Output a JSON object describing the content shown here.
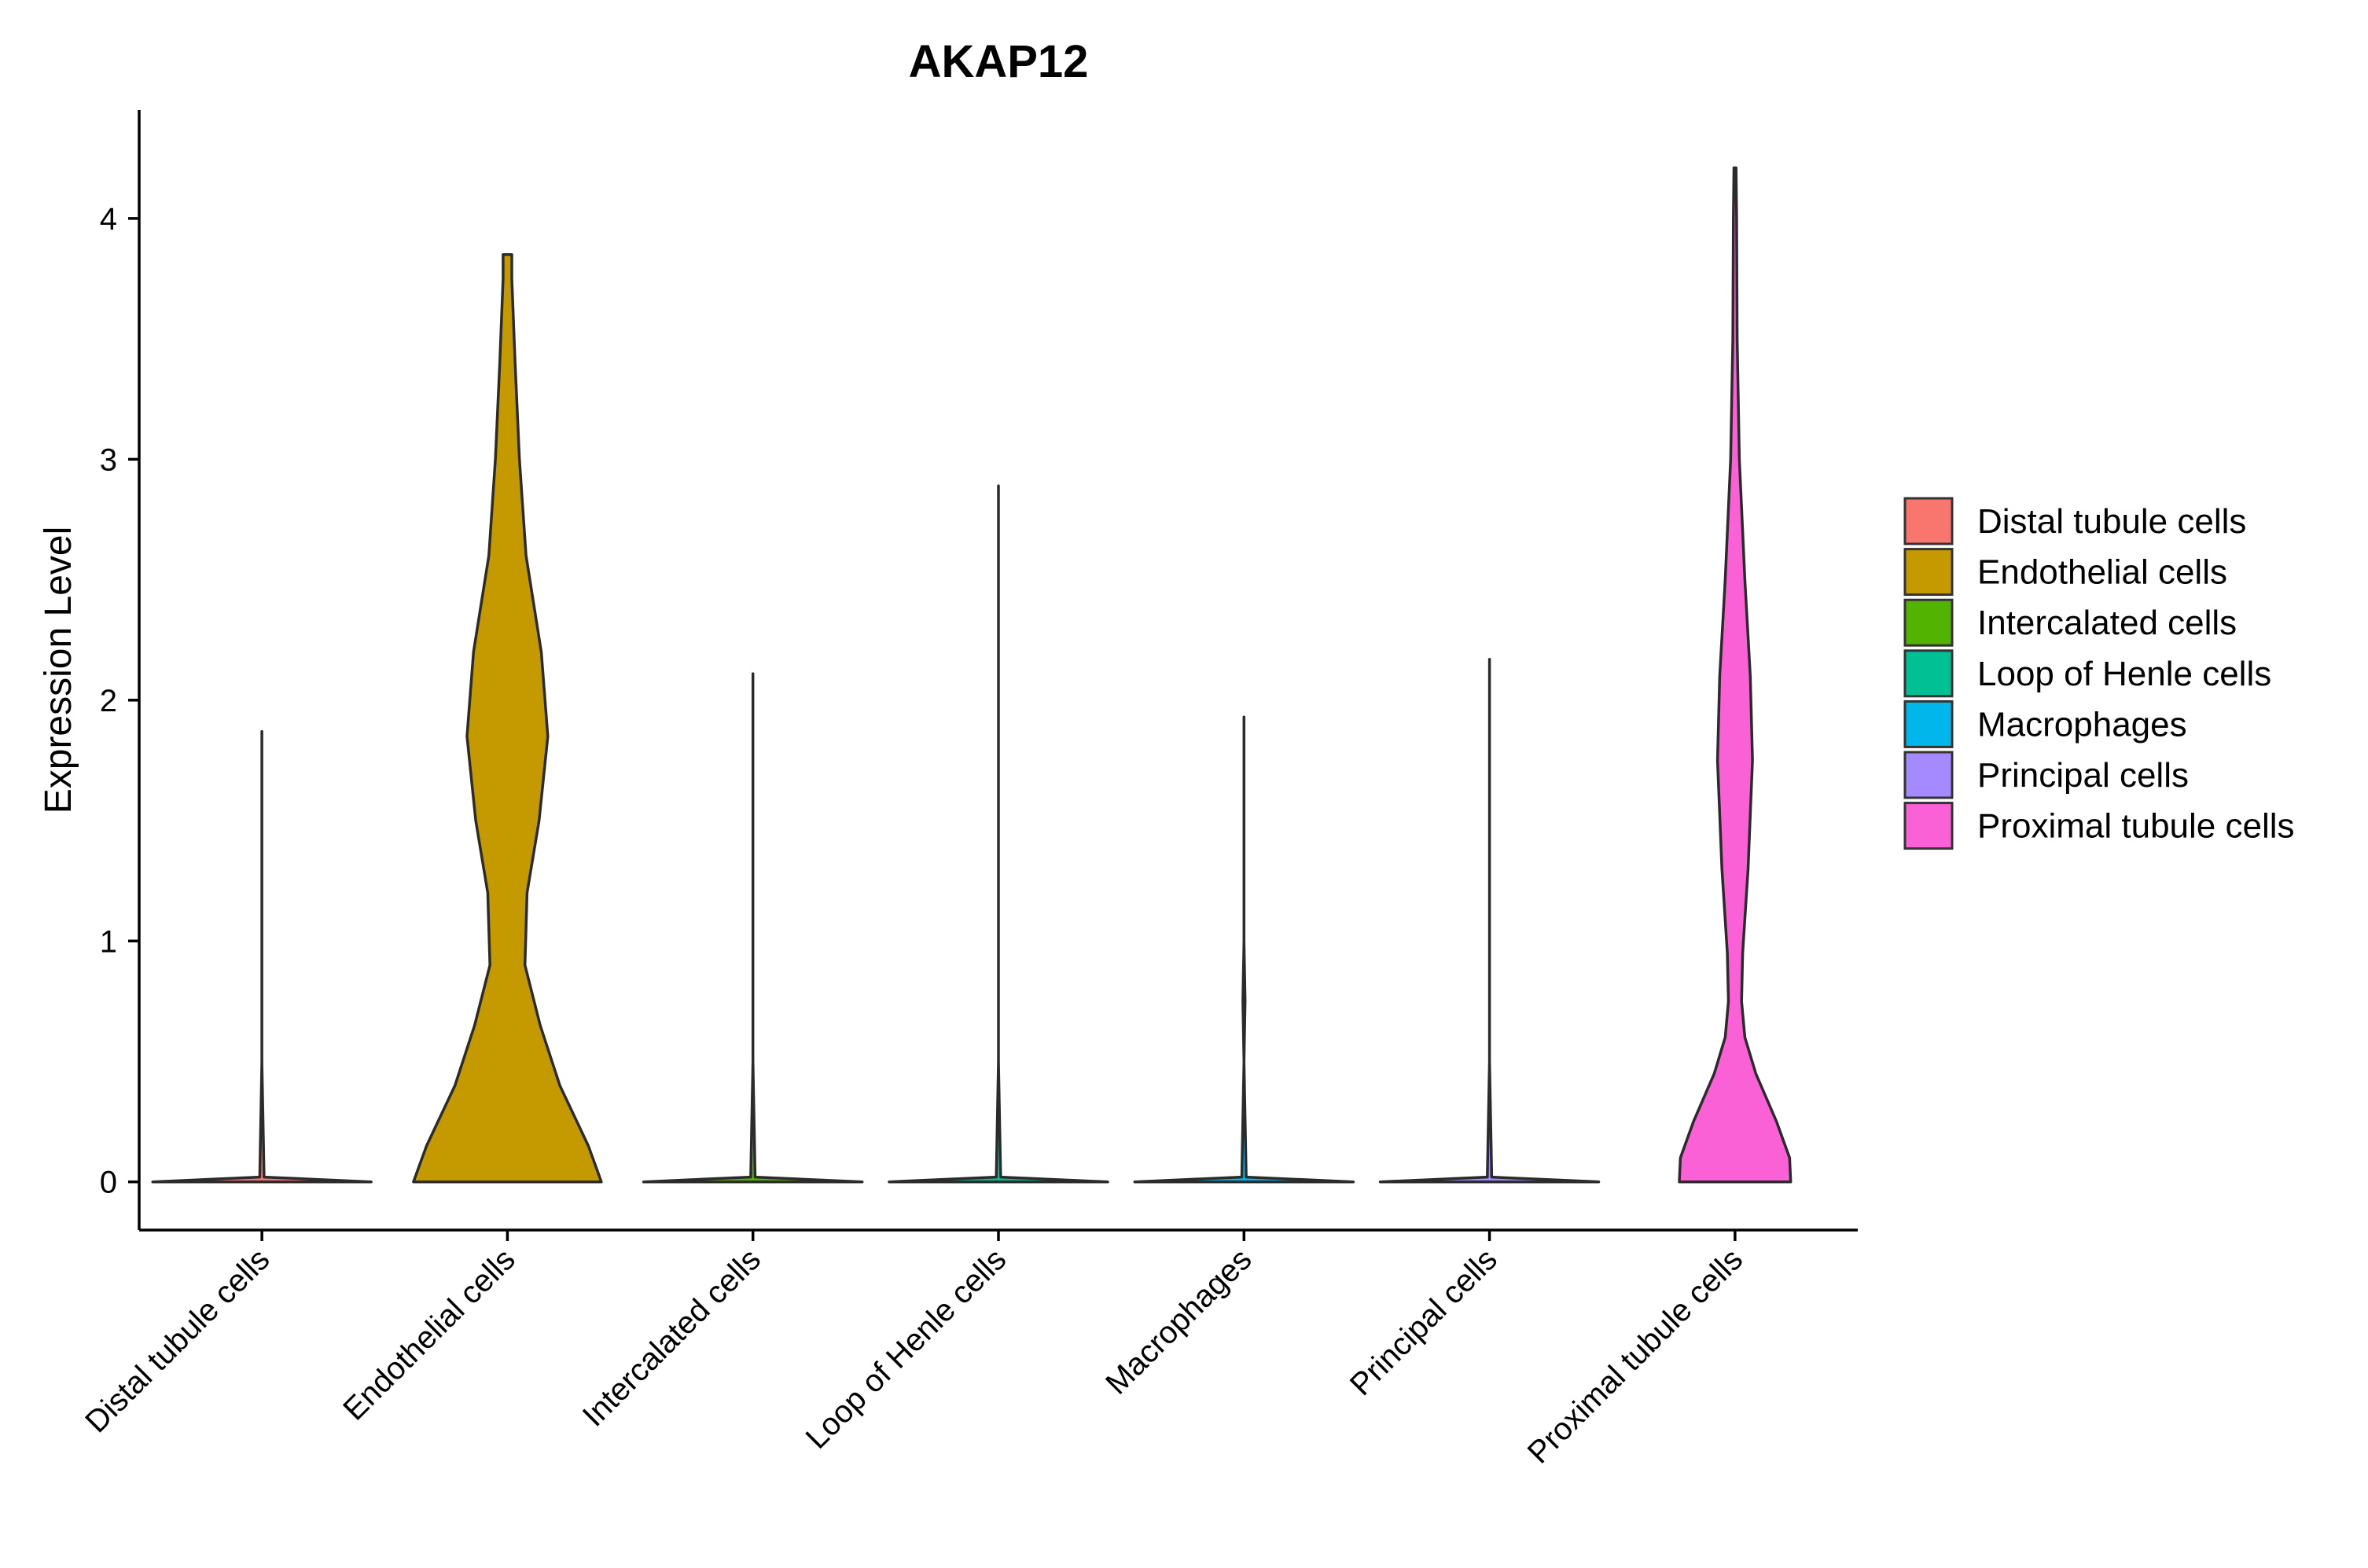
{
  "chart_data": {
    "type": "violin",
    "title": "AKAP12",
    "xlabel": "",
    "ylabel": "Expression Level",
    "ylim": [
      -0.2,
      4.45
    ],
    "yticks": [
      0,
      1,
      2,
      3,
      4
    ],
    "grid": false,
    "legend_position": "right",
    "categories": [
      "Distal tubule cells",
      "Endothelial cells",
      "Intercalated cells",
      "Loop of Henle cells",
      "Macrophages",
      "Principal cells",
      "Proximal tubule cells"
    ],
    "colors": [
      "#F8766D",
      "#C49A00",
      "#53B400",
      "#00C094",
      "#00B6EB",
      "#A58AFF",
      "#FB61D7"
    ],
    "series": [
      {
        "name": "Distal tubule cells",
        "min": 0,
        "max": 1.87,
        "profile": [
          [
            0,
            1.0
          ],
          [
            0.02,
            0.02
          ],
          [
            0.5,
            0.0
          ],
          [
            1.87,
            0.0
          ]
        ]
      },
      {
        "name": "Endothelial cells",
        "min": 0,
        "max": 3.85,
        "profile": [
          [
            0,
            0.86
          ],
          [
            0.15,
            0.74
          ],
          [
            0.4,
            0.48
          ],
          [
            0.65,
            0.3
          ],
          [
            0.9,
            0.16
          ],
          [
            1.2,
            0.18
          ],
          [
            1.5,
            0.29
          ],
          [
            1.85,
            0.37
          ],
          [
            2.2,
            0.31
          ],
          [
            2.6,
            0.17
          ],
          [
            3.0,
            0.11
          ],
          [
            3.4,
            0.07
          ],
          [
            3.75,
            0.04
          ],
          [
            3.85,
            0.04
          ]
        ]
      },
      {
        "name": "Intercalated cells",
        "min": 0,
        "max": 2.11,
        "profile": [
          [
            0,
            1.0
          ],
          [
            0.02,
            0.02
          ],
          [
            0.5,
            0.0
          ],
          [
            2.11,
            0.0
          ]
        ]
      },
      {
        "name": "Loop of Henle cells",
        "min": 0,
        "max": 2.89,
        "profile": [
          [
            0,
            1.0
          ],
          [
            0.02,
            0.02
          ],
          [
            0.5,
            0.0
          ],
          [
            2.89,
            0.0
          ]
        ]
      },
      {
        "name": "Macrophages",
        "min": 0,
        "max": 1.93,
        "profile": [
          [
            0,
            1.0
          ],
          [
            0.02,
            0.02
          ],
          [
            0.5,
            0.0
          ],
          [
            0.75,
            0.01
          ],
          [
            1.0,
            0.0
          ],
          [
            1.93,
            0.0
          ]
        ]
      },
      {
        "name": "Principal cells",
        "min": 0,
        "max": 2.17,
        "profile": [
          [
            0,
            1.0
          ],
          [
            0.02,
            0.02
          ],
          [
            0.5,
            0.0
          ],
          [
            2.17,
            0.0
          ]
        ]
      },
      {
        "name": "Proximal tubule cells",
        "min": 0,
        "max": 4.21,
        "profile": [
          [
            0,
            0.51
          ],
          [
            0.1,
            0.5
          ],
          [
            0.25,
            0.38
          ],
          [
            0.45,
            0.19
          ],
          [
            0.6,
            0.09
          ],
          [
            0.75,
            0.06
          ],
          [
            0.95,
            0.07
          ],
          [
            1.3,
            0.12
          ],
          [
            1.75,
            0.16
          ],
          [
            2.1,
            0.14
          ],
          [
            2.5,
            0.09
          ],
          [
            3.0,
            0.04
          ],
          [
            3.5,
            0.02
          ],
          [
            4.0,
            0.015
          ],
          [
            4.21,
            0.01
          ]
        ]
      }
    ]
  }
}
